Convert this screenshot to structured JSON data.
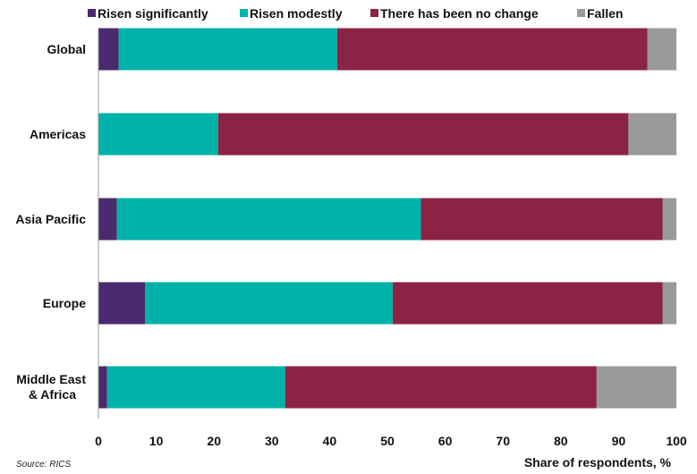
{
  "chart_data": {
    "type": "bar",
    "orientation": "horizontal",
    "stacked": true,
    "categories": [
      "Global",
      "Americas",
      "Asia Pacific",
      "Europe",
      "Middle East & Africa"
    ],
    "series": [
      {
        "name": "Risen significantly",
        "color": "#4a2a6e",
        "values": [
          3.5,
          0,
          3.2,
          8.1,
          1.5
        ]
      },
      {
        "name": "Risen modestly",
        "color": "#00b3aa",
        "values": [
          37.8,
          20.7,
          52.6,
          42.8,
          30.8
        ]
      },
      {
        "name": "There has been no change",
        "color": "#8b2344",
        "values": [
          53.7,
          71.0,
          41.8,
          46.7,
          53.9
        ]
      },
      {
        "name": "Fallen",
        "color": "#9a9a9a",
        "values": [
          5.0,
          8.3,
          2.4,
          2.4,
          13.8
        ]
      }
    ],
    "xlabel": "Share of respondents, %",
    "xlim": [
      0,
      100
    ],
    "xticks": [
      0,
      10,
      20,
      30,
      40,
      50,
      60,
      70,
      80,
      90,
      100
    ],
    "legend_position": "top",
    "grid": false
  },
  "source": "Source: RICS"
}
